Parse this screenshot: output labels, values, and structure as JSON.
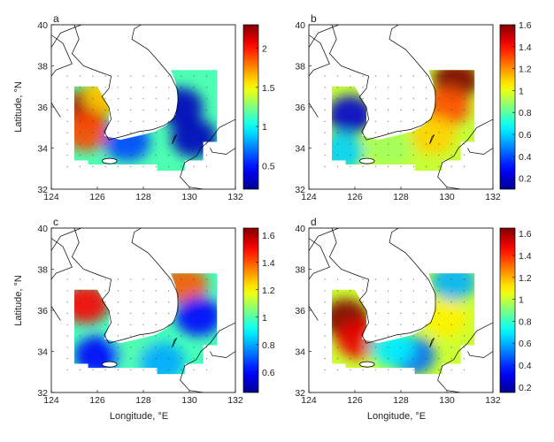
{
  "figure": {
    "ylabel": "Latitude, °N",
    "xlabel": "Longitude, °E"
  },
  "colors": {
    "land_outline": "#000000",
    "island_fill": "#ffffff",
    "colormap": [
      "#00008f",
      "#0000ff",
      "#00ffff",
      "#ffff00",
      "#ff0000",
      "#800000"
    ]
  },
  "chart_data": [
    {
      "type": "heatmap",
      "panel_letter": "a",
      "xlim": [
        124,
        132
      ],
      "ylim": [
        32,
        40
      ],
      "xticks": [
        "124",
        "126",
        "128",
        "130",
        "132"
      ],
      "yticks": [
        "32",
        "34",
        "36",
        "38",
        "40"
      ],
      "colorbar": {
        "min": 0.2,
        "max": 2.3,
        "ticks": [
          "0.5",
          "1",
          "1.5",
          "2"
        ]
      },
      "hotspots": [
        {
          "lon": 125.6,
          "lat": 36.0,
          "value": 2.2
        },
        {
          "lon": 125.5,
          "lat": 34.8,
          "value": 1.9
        },
        {
          "lon": 126.4,
          "lat": 36.6,
          "value": 1.6
        },
        {
          "lon": 127.3,
          "lat": 34.3,
          "value": 0.6
        },
        {
          "lon": 129.6,
          "lat": 36.0,
          "value": 0.3
        },
        {
          "lon": 130.2,
          "lat": 34.5,
          "value": 0.3
        }
      ]
    },
    {
      "type": "heatmap",
      "panel_letter": "b",
      "xlim": [
        124,
        132
      ],
      "ylim": [
        32,
        40
      ],
      "xticks": [
        "124",
        "126",
        "128",
        "130",
        "132"
      ],
      "yticks": [
        "32",
        "34",
        "36",
        "38",
        "40"
      ],
      "colorbar": {
        "min": 0.1,
        "max": 1.6,
        "ticks": [
          "0.2",
          "0.4",
          "0.6",
          "0.8",
          "1",
          "1.2",
          "1.4",
          "1.6"
        ]
      },
      "hotspots": [
        {
          "lon": 130.4,
          "lat": 37.3,
          "value": 1.6
        },
        {
          "lon": 130.0,
          "lat": 36.0,
          "value": 1.3
        },
        {
          "lon": 129.4,
          "lat": 34.6,
          "value": 1.1
        },
        {
          "lon": 127.5,
          "lat": 34.0,
          "value": 0.9
        },
        {
          "lon": 125.8,
          "lat": 35.6,
          "value": 0.2
        },
        {
          "lon": 125.4,
          "lat": 33.8,
          "value": 0.6
        }
      ]
    },
    {
      "type": "heatmap",
      "panel_letter": "c",
      "xlim": [
        124,
        132
      ],
      "ylim": [
        32,
        40
      ],
      "xticks": [
        "124",
        "126",
        "128",
        "130",
        "132"
      ],
      "yticks": [
        "32",
        "34",
        "36",
        "38",
        "40"
      ],
      "colorbar": {
        "min": 0.45,
        "max": 1.65,
        "ticks": [
          "0.6",
          "0.8",
          "1",
          "1.2",
          "1.4",
          "1.6"
        ]
      },
      "hotspots": [
        {
          "lon": 125.5,
          "lat": 36.3,
          "value": 1.5
        },
        {
          "lon": 129.8,
          "lat": 37.2,
          "value": 1.4
        },
        {
          "lon": 127.5,
          "lat": 34.2,
          "value": 1.0
        },
        {
          "lon": 130.4,
          "lat": 35.7,
          "value": 0.6
        },
        {
          "lon": 126.0,
          "lat": 33.8,
          "value": 0.6
        },
        {
          "lon": 128.8,
          "lat": 33.5,
          "value": 0.8
        }
      ]
    },
    {
      "type": "heatmap",
      "panel_letter": "d",
      "xlim": [
        124,
        132
      ],
      "ylim": [
        32,
        40
      ],
      "xticks": [
        "124",
        "126",
        "128",
        "130",
        "132"
      ],
      "yticks": [
        "32",
        "34",
        "36",
        "38",
        "40"
      ],
      "colorbar": {
        "min": 0.15,
        "max": 1.65,
        "ticks": [
          "0.2",
          "0.4",
          "0.6",
          "0.8",
          "1",
          "1.2",
          "1.4",
          "1.6"
        ]
      },
      "hotspots": [
        {
          "lon": 125.6,
          "lat": 35.6,
          "value": 1.65
        },
        {
          "lon": 126.2,
          "lat": 34.6,
          "value": 1.5
        },
        {
          "lon": 129.9,
          "lat": 35.6,
          "value": 1.1
        },
        {
          "lon": 130.3,
          "lat": 37.4,
          "value": 0.6
        },
        {
          "lon": 128.5,
          "lat": 33.8,
          "value": 0.5
        },
        {
          "lon": 127.6,
          "lat": 34.2,
          "value": 0.7
        }
      ]
    }
  ]
}
